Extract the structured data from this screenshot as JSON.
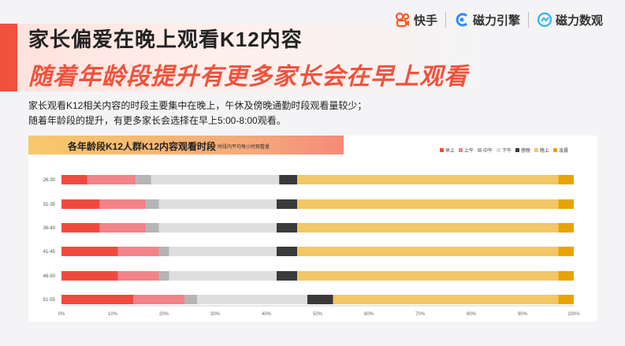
{
  "header": {
    "title_line1": "家长偏爱在晚上观看K12内容",
    "title_line2": "随着年龄段提升有更多家长会在早上观看"
  },
  "brands": [
    "快手",
    "磁力引擎",
    "磁力数观"
  ],
  "description": {
    "line1": "家长观看K12相关内容的时段主要集中在晚上，午休及傍晚通勤时段观看量较少；",
    "line2": "随着年龄段的提升，有更多家长会选择在早上5:00-8:00观看。"
  },
  "chart_data": {
    "type": "bar",
    "orientation": "horizontal",
    "stacked": true,
    "title": "各年龄段K12人群K12内容观看时段",
    "subtitle": "时段内平均每小时观看量",
    "categories": [
      "26-30",
      "31-35",
      "36-40",
      "41-45",
      "46-50",
      "51-55"
    ],
    "xlim": [
      0,
      100
    ],
    "x_ticks": [
      "0%",
      "10%",
      "20%",
      "30%",
      "40%",
      "50%",
      "60%",
      "70%",
      "80%",
      "90%",
      "100%"
    ],
    "legend_position": "top-right",
    "series": [
      {
        "name": "早上",
        "color": "#f04a3e",
        "values": [
          5,
          7.5,
          7.5,
          11,
          11,
          14
        ]
      },
      {
        "name": "上午",
        "color": "#f48289",
        "values": [
          9.5,
          9,
          9,
          8,
          8,
          10
        ]
      },
      {
        "name": "中午",
        "color": "#b5b5b5",
        "values": [
          3,
          2.5,
          2.5,
          2,
          2,
          2.5
        ]
      },
      {
        "name": "下午",
        "color": "#dedede",
        "values": [
          25,
          23,
          23,
          21,
          21,
          21.5
        ]
      },
      {
        "name": "傍晚",
        "color": "#3a3a3a",
        "values": [
          3.5,
          4,
          4,
          4,
          4,
          5
        ]
      },
      {
        "name": "晚上",
        "color": "#f2c765",
        "values": [
          51,
          51,
          51,
          51,
          51,
          44
        ]
      },
      {
        "name": "凌晨",
        "color": "#e9a300",
        "values": [
          3,
          3,
          3,
          3,
          3,
          3
        ]
      }
    ]
  }
}
